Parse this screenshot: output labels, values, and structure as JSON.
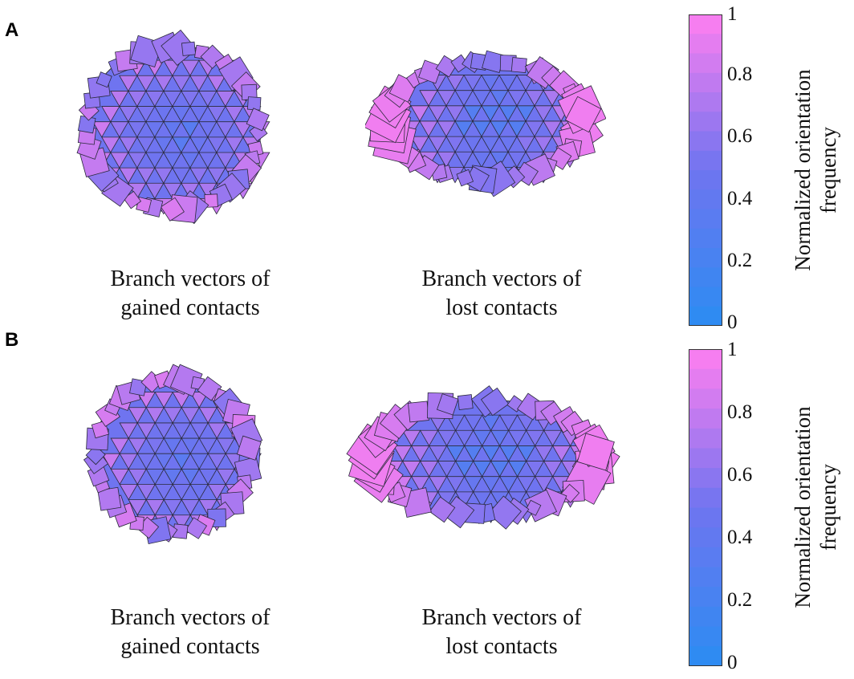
{
  "panels": [
    {
      "label": "A",
      "shapes": [
        {
          "caption_line1": "Branch vectors of",
          "caption_line2": "gained contacts",
          "form": "sphere"
        },
        {
          "caption_line1": "Branch vectors of",
          "caption_line2": "lost contacts",
          "form": "torus"
        }
      ],
      "colorbar": {
        "ticks": [
          "1",
          "0.8",
          "0.6",
          "0.4",
          "0.2",
          "0"
        ],
        "title_line1": "Normalized orientation",
        "title_line2": "frequency",
        "color_low": "#2b8cf2",
        "color_mid": "#6f74f0",
        "color_high": "#ff7ff0"
      }
    },
    {
      "label": "B",
      "shapes": [
        {
          "caption_line1": "Branch vectors of",
          "caption_line2": "gained contacts",
          "form": "sphere"
        },
        {
          "caption_line1": "Branch vectors of",
          "caption_line2": "lost contacts",
          "form": "torus"
        }
      ],
      "colorbar": {
        "ticks": [
          "1",
          "0.8",
          "0.6",
          "0.4",
          "0.2",
          "0"
        ],
        "title_line1": "Normalized orientation",
        "title_line2": "frequency",
        "color_low": "#2b8cf2",
        "color_mid": "#6f74f0",
        "color_high": "#ff7ff0"
      }
    }
  ]
}
